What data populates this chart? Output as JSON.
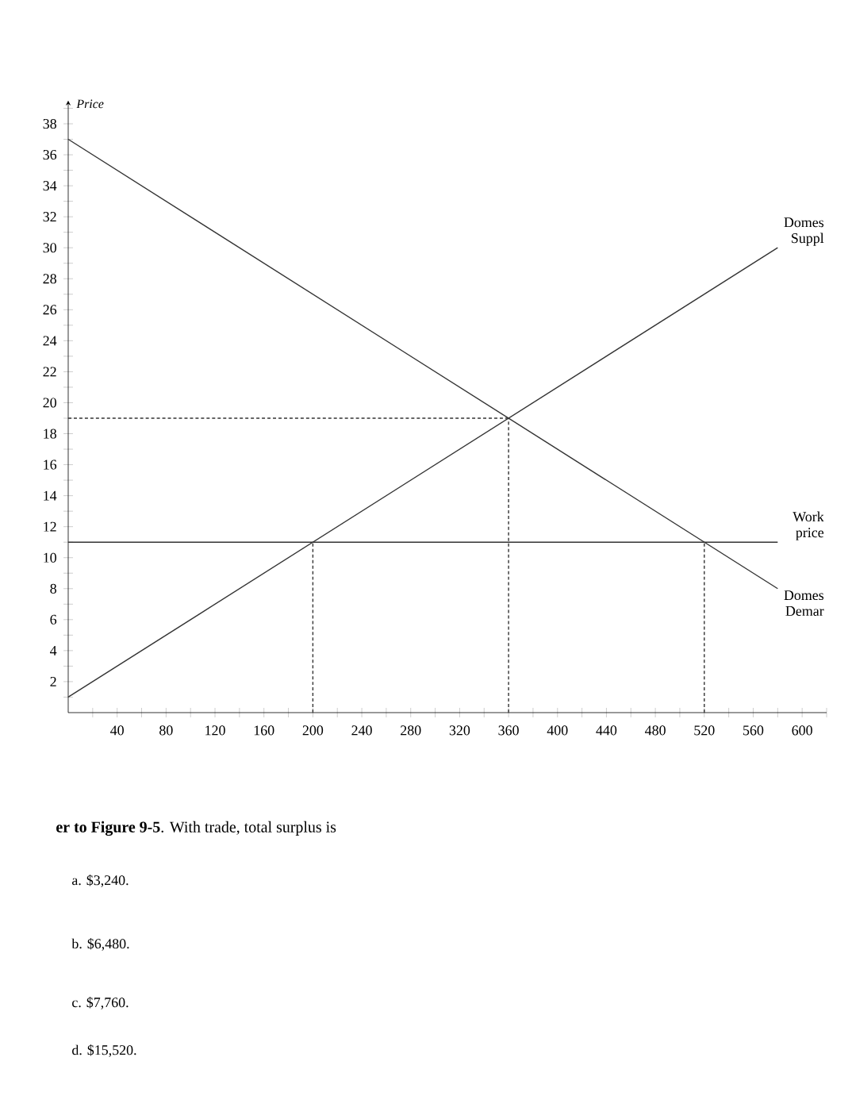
{
  "chart_data": {
    "type": "line",
    "ylabel": "Price",
    "xlim": [
      0,
      620
    ],
    "ylim": [
      0,
      39.5
    ],
    "xticks": [
      {
        "value": 20,
        "label": null
      },
      40,
      {
        "value": 60,
        "label": null
      },
      80,
      {
        "value": 100,
        "label": null
      },
      120,
      {
        "value": 140,
        "label": null
      },
      160,
      {
        "value": 180,
        "label": null
      },
      200,
      {
        "value": 220,
        "label": null
      },
      240,
      {
        "value": 260,
        "label": null
      },
      280,
      {
        "value": 300,
        "label": null
      },
      320,
      {
        "value": 340,
        "label": null
      },
      360,
      {
        "value": 380,
        "label": null
      },
      400,
      {
        "value": 420,
        "label": null
      },
      440,
      {
        "value": 460,
        "label": null
      },
      480,
      {
        "value": 500,
        "label": null
      },
      520,
      {
        "value": 540,
        "label": null
      },
      560,
      {
        "value": 580,
        "label": null
      },
      600,
      {
        "value": 620,
        "label": null
      }
    ],
    "yticks": [
      {
        "value": 1,
        "label": null
      },
      2,
      {
        "value": 3,
        "label": null
      },
      4,
      {
        "value": 5,
        "label": null
      },
      6,
      {
        "value": 7,
        "label": null
      },
      8,
      {
        "value": 9,
        "label": null
      },
      10,
      {
        "value": 11,
        "label": null
      },
      12,
      {
        "value": 13,
        "label": null
      },
      14,
      {
        "value": 15,
        "label": null
      },
      16,
      {
        "value": 17,
        "label": null
      },
      18,
      {
        "value": 19,
        "label": null
      },
      20,
      {
        "value": 21,
        "label": null
      },
      22,
      {
        "value": 23,
        "label": null
      },
      24,
      {
        "value": 25,
        "label": null
      },
      26,
      {
        "value": 27,
        "label": null
      },
      28,
      {
        "value": 29,
        "label": null
      },
      30,
      {
        "value": 31,
        "label": null
      },
      32,
      {
        "value": 33,
        "label": null
      },
      34,
      {
        "value": 35,
        "label": null
      },
      36,
      {
        "value": 37,
        "label": null
      },
      38,
      {
        "value": 39,
        "label": null
      }
    ],
    "grid": false,
    "marker": "none",
    "series": [
      {
        "name": "Domes Suppl",
        "color": "#333333",
        "line_style": "solid",
        "x": [
          0,
          580
        ],
        "values": [
          1,
          30
        ]
      },
      {
        "name": "Domes Demar",
        "color": "#333333",
        "line_style": "solid",
        "x": [
          0,
          580
        ],
        "values": [
          37,
          8
        ]
      },
      {
        "name": "Work price",
        "color": "#333333",
        "line_style": "solid",
        "x": [
          0,
          580
        ],
        "values": [
          11,
          11
        ]
      },
      {
        "color": "#333333",
        "line_style": "dashed",
        "x": [
          0,
          360
        ],
        "values": [
          19,
          19
        ]
      },
      {
        "color": "#333333",
        "line_style": "dashed",
        "x": [
          200,
          200
        ],
        "values": [
          0,
          11
        ]
      },
      {
        "color": "#333333",
        "line_style": "dashed",
        "x": [
          360,
          360
        ],
        "values": [
          0,
          19
        ]
      },
      {
        "color": "#333333",
        "line_style": "dashed",
        "x": [
          520,
          520
        ],
        "values": [
          0,
          11
        ]
      }
    ],
    "annotations": [
      "**er to Figure 9-5**. With trade, total surplus is",
      "a. $3,240.",
      "b. $6,480.",
      "c. $7,760.",
      "d. $15,520."
    ]
  }
}
